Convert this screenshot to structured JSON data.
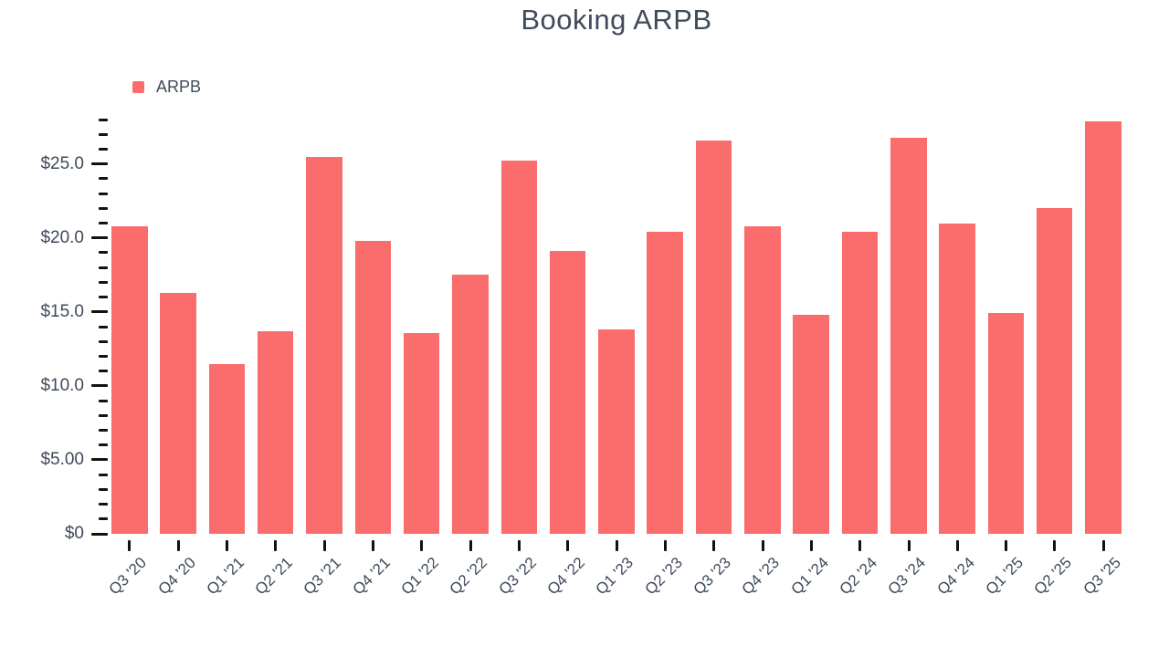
{
  "colors": {
    "background": "#ffffff",
    "bar": "#fb6c6c",
    "text": "#3f4a5b",
    "tick": "#111111"
  },
  "chart_data": {
    "type": "bar",
    "title": "Booking ARPB",
    "categories": [
      "Q3 '20",
      "Q4 '20",
      "Q1 '21",
      "Q2 '21",
      "Q3 '21",
      "Q4 '21",
      "Q1 '22",
      "Q2 '22",
      "Q3 '22",
      "Q4 '22",
      "Q1 '23",
      "Q2 '23",
      "Q3 '23",
      "Q4 '23",
      "Q1 '24",
      "Q2 '24",
      "Q3 '24",
      "Q4 '24",
      "Q1 '25",
      "Q2 '25",
      "Q3 '25"
    ],
    "series": [
      {
        "name": "ARPB",
        "color": "#fb6c6c",
        "values": [
          20.8,
          16.3,
          11.5,
          13.7,
          25.5,
          19.8,
          13.6,
          17.5,
          25.2,
          19.1,
          13.8,
          20.4,
          26.6,
          20.8,
          14.8,
          20.4,
          26.8,
          21.0,
          14.9,
          22.0,
          27.9
        ]
      }
    ],
    "xlabel": "",
    "ylabel": "",
    "ylim": [
      0,
      28
    ],
    "y_major_ticks": [
      0,
      5,
      10,
      15,
      20,
      25
    ],
    "y_major_tick_labels": [
      "$0",
      "$5.00",
      "$10.0",
      "$15.0",
      "$20.0",
      "$25.0"
    ],
    "y_minor_tick_step": 1,
    "grid": false,
    "legend_position": "top-left"
  }
}
